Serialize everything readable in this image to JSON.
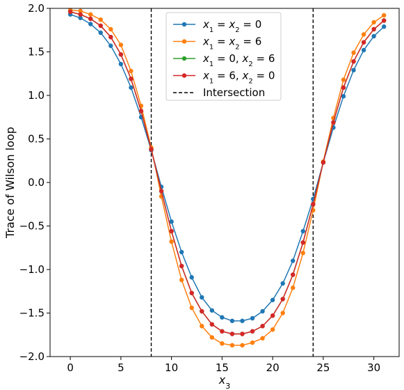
{
  "chart_data": {
    "type": "line",
    "title": "",
    "xlabel": "x_3",
    "ylabel": "Trace of Wilson loop",
    "xlim": [
      -2,
      32.5
    ],
    "ylim": [
      -2.0,
      2.0
    ],
    "xticks": [
      0,
      5,
      10,
      15,
      20,
      25,
      30
    ],
    "yticks": [
      -2.0,
      -1.5,
      -1.0,
      -0.5,
      0.0,
      0.5,
      1.0,
      1.5,
      2.0
    ],
    "ytick_labels": [
      "−2.0",
      "−1.5",
      "−1.0",
      "−0.5",
      "0.0",
      "0.5",
      "1.0",
      "1.5",
      "2.0"
    ],
    "grid": false,
    "legend_position": "upper center",
    "x": [
      0,
      1,
      2,
      3,
      4,
      5,
      6,
      7,
      8,
      9,
      10,
      11,
      12,
      13,
      14,
      15,
      16,
      17,
      18,
      19,
      20,
      21,
      22,
      23,
      24,
      25,
      26,
      27,
      28,
      29,
      30,
      31
    ],
    "series": [
      {
        "name": "x1 = x2 = 0",
        "color": "#1f77b4",
        "values": [
          1.93,
          1.89,
          1.82,
          1.72,
          1.57,
          1.36,
          1.09,
          0.75,
          0.37,
          -0.05,
          -0.45,
          -0.8,
          -1.09,
          -1.32,
          -1.47,
          -1.55,
          -1.59,
          -1.59,
          -1.56,
          -1.48,
          -1.35,
          -1.16,
          -0.9,
          -0.56,
          -0.19,
          0.23,
          0.63,
          0.99,
          1.29,
          1.52,
          1.68,
          1.79
        ]
      },
      {
        "name": "x1 = x2 = 6",
        "color": "#ff7f0e",
        "values": [
          1.98,
          1.97,
          1.93,
          1.87,
          1.76,
          1.58,
          1.28,
          0.88,
          0.4,
          -0.16,
          -0.68,
          -1.12,
          -1.44,
          -1.65,
          -1.78,
          -1.85,
          -1.87,
          -1.87,
          -1.84,
          -1.79,
          -1.69,
          -1.5,
          -1.21,
          -0.81,
          -0.32,
          0.24,
          0.74,
          1.18,
          1.49,
          1.7,
          1.84,
          1.92
        ]
      },
      {
        "name": "x1 = 0, x2 = 6",
        "color": "#2ca02c",
        "values": [
          1.96,
          1.93,
          1.88,
          1.8,
          1.67,
          1.47,
          1.19,
          0.82,
          0.38,
          -0.1,
          -0.56,
          -0.96,
          -1.27,
          -1.48,
          -1.63,
          -1.71,
          -1.74,
          -1.74,
          -1.71,
          -1.65,
          -1.53,
          -1.34,
          -1.06,
          -0.69,
          -0.25,
          0.23,
          0.69,
          1.09,
          1.39,
          1.61,
          1.76,
          1.86
        ]
      },
      {
        "name": "x1 = 6, x2 = 0",
        "color": "#d62728",
        "values": [
          1.96,
          1.93,
          1.88,
          1.8,
          1.67,
          1.47,
          1.19,
          0.82,
          0.38,
          -0.1,
          -0.56,
          -0.96,
          -1.27,
          -1.48,
          -1.63,
          -1.71,
          -1.74,
          -1.74,
          -1.71,
          -1.65,
          -1.53,
          -1.34,
          -1.06,
          -0.69,
          -0.25,
          0.23,
          0.69,
          1.09,
          1.39,
          1.61,
          1.76,
          1.86
        ]
      }
    ],
    "vlines": [
      {
        "x": 8,
        "name": "Intersection",
        "style": "dashed",
        "color": "#000000"
      },
      {
        "x": 24,
        "style": "dashed",
        "color": "#000000"
      }
    ]
  }
}
